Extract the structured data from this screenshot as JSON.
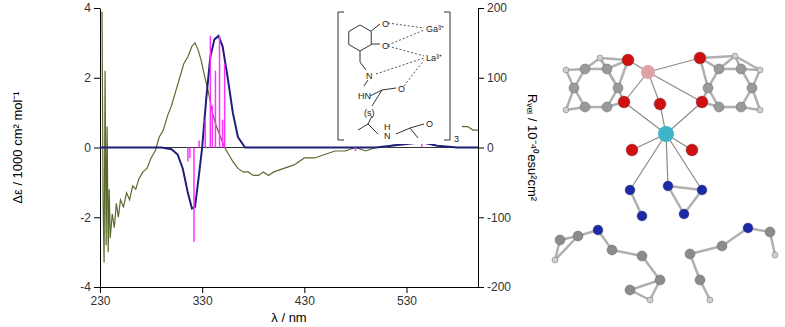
{
  "chart_data": {
    "type": "line",
    "xlabel": "λ / nm",
    "ylabel": "Δε / 1000 cm² mol⁻¹",
    "y2label": "Rᵥₑₗ / 10⁻⁴⁰esu²cm²",
    "xlim": [
      230,
      600
    ],
    "xticks": [
      230,
      330,
      430,
      530
    ],
    "ylim": [
      -4,
      4
    ],
    "yticks": [
      -4,
      -2,
      0,
      2,
      4
    ],
    "y2lim": [
      -200,
      200
    ],
    "y2ticks": [
      -200,
      -100,
      0,
      100,
      200
    ],
    "series": [
      {
        "type": "line",
        "color": "#5b6b2e",
        "x": [
          232,
          233,
          234,
          235,
          236,
          237,
          238,
          239,
          240,
          242,
          244,
          246,
          248,
          250,
          253,
          256,
          259,
          262,
          265,
          268,
          272,
          276,
          280,
          284,
          288,
          292,
          296,
          300,
          304,
          308,
          312,
          316,
          320,
          323,
          326,
          329,
          332,
          336,
          340,
          344,
          348,
          352,
          356,
          360,
          365,
          370,
          375,
          380,
          385,
          390,
          395,
          400,
          410,
          420,
          430,
          440,
          450,
          460,
          470,
          480,
          490,
          500,
          510,
          520,
          530,
          540,
          550,
          555,
          560,
          565,
          570,
          575,
          580,
          585,
          590,
          595,
          600
        ],
        "values": [
          3.9,
          -1.5,
          -3.3,
          2.2,
          -2.8,
          0.6,
          -3.0,
          -1.2,
          -2.6,
          -1.9,
          -2.3,
          -1.6,
          -2.0,
          -1.5,
          -1.7,
          -1.3,
          -1.5,
          -1.1,
          -1.2,
          -0.9,
          -0.7,
          -0.6,
          -0.3,
          -0.1,
          0.3,
          0.5,
          0.9,
          1.2,
          1.6,
          2.0,
          2.4,
          2.6,
          2.9,
          3.0,
          2.8,
          2.5,
          2.1,
          1.6,
          1.0,
          0.6,
          0.3,
          0.0,
          -0.2,
          -0.4,
          -0.6,
          -0.7,
          -0.7,
          -0.8,
          -0.8,
          -0.7,
          -0.8,
          -0.7,
          -0.6,
          -0.5,
          -0.3,
          -0.3,
          -0.2,
          -0.1,
          -0.1,
          0.0,
          -0.1,
          0.0,
          0.0,
          0.1,
          0.1,
          0.2,
          0.3,
          0.3,
          0.4,
          0.5,
          0.5,
          0.6,
          0.7,
          0.6,
          0.6,
          0.5,
          0.5
        ]
      },
      {
        "type": "line",
        "color": "#1f1f7a",
        "x": [
          230,
          290,
          300,
          306,
          311,
          316,
          320,
          323,
          326,
          330,
          334,
          338,
          342,
          346,
          350,
          355,
          360,
          365,
          372,
          500,
          530,
          545,
          560,
          580,
          600
        ],
        "values": [
          0,
          0,
          -0.05,
          -0.2,
          -0.6,
          -1.3,
          -1.75,
          -1.7,
          -1.0,
          0,
          1.4,
          2.6,
          3.1,
          3.2,
          2.9,
          2.0,
          1.0,
          0.3,
          0,
          0,
          0.1,
          0.15,
          0.05,
          0,
          0
        ]
      },
      {
        "type": "bar",
        "axis": "y2",
        "color": "#ff33ff",
        "x": [
          316,
          318,
          322,
          327,
          333,
          338,
          340,
          343,
          347,
          350,
          352,
          480,
          545
        ],
        "values": [
          -20,
          -15,
          -135,
          10,
          40,
          160,
          60,
          110,
          160,
          40,
          120,
          -5,
          8
        ]
      }
    ],
    "annotations": [
      "O",
      "O",
      "Ga³⁺",
      "La³⁺",
      "N",
      "HN",
      "O",
      "(s)",
      "H",
      "N",
      "O",
      "3"
    ]
  }
}
